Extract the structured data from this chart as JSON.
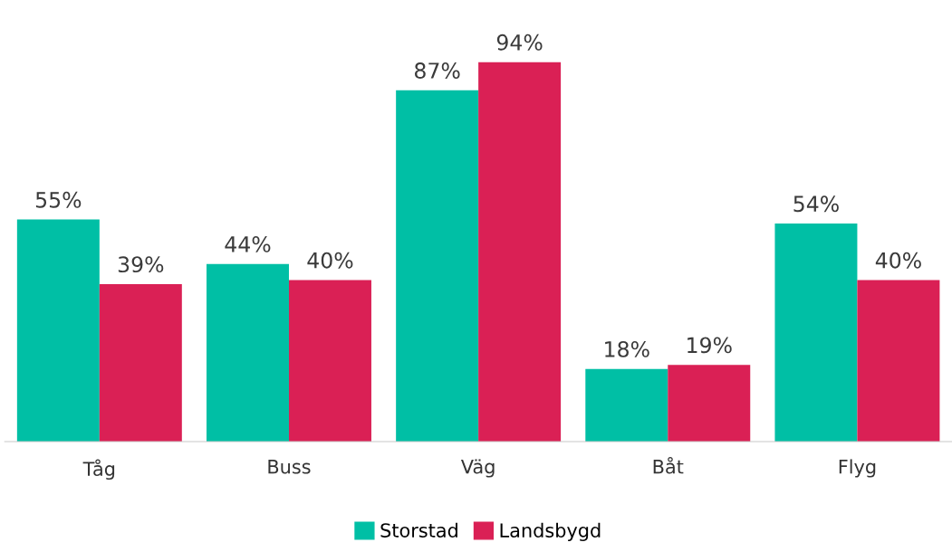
{
  "chart_data": {
    "type": "bar",
    "categories": [
      "Tåg",
      "Buss",
      "Väg",
      "Båt",
      "Flyg"
    ],
    "series": [
      {
        "name": "Storstad",
        "color": "#00bfa5",
        "values": [
          55,
          44,
          87,
          18,
          54
        ],
        "value_labels": [
          "55%",
          "44%",
          "87%",
          "18%",
          "54%"
        ]
      },
      {
        "name": "Landsbygd",
        "color": "#da2055",
        "values": [
          39,
          40,
          94,
          19,
          40
        ],
        "value_labels": [
          "39%",
          "40%",
          "94%",
          "19%",
          "40%"
        ]
      }
    ],
    "grid": false,
    "legend": "bottom",
    "tick_labels": "x"
  }
}
